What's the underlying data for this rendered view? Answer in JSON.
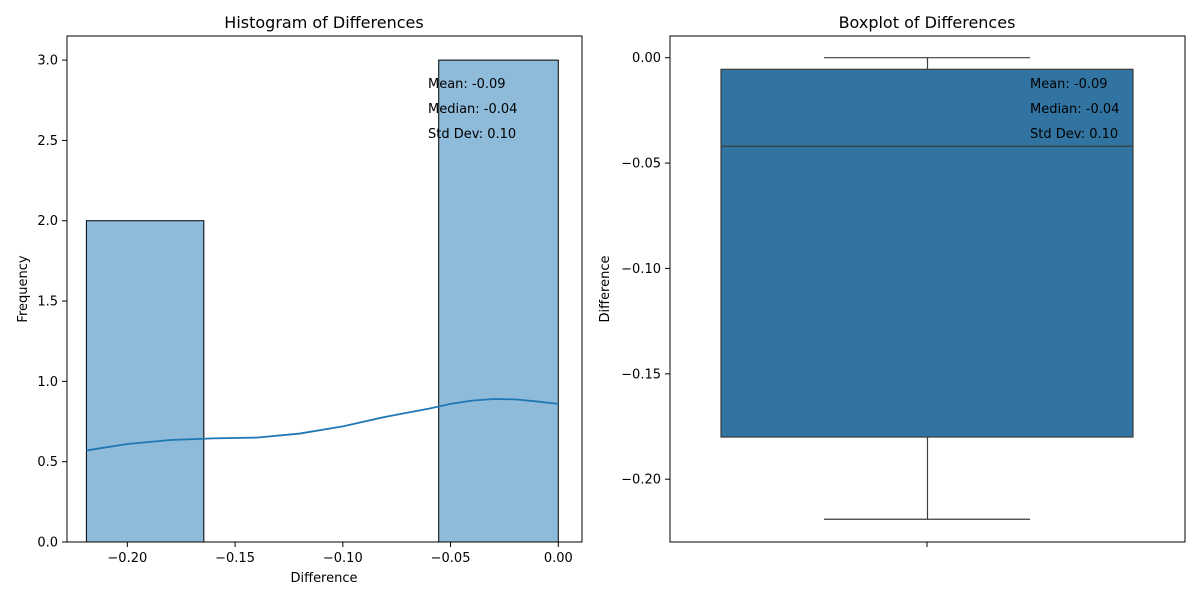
{
  "chart_data": [
    {
      "type": "bar",
      "subtype": "histogram",
      "title": "Histogram of Differences",
      "xlabel": "Difference",
      "ylabel": "Frequency",
      "xlim": [
        -0.228,
        0.011
      ],
      "ylim": [
        0,
        3.15
      ],
      "xticks": [
        "−0.20",
        "−0.15",
        "−0.10",
        "−0.05",
        "0.00"
      ],
      "xtick_values": [
        -0.2,
        -0.15,
        -0.1,
        -0.05,
        0.0
      ],
      "yticks": [
        "0.0",
        "0.5",
        "1.0",
        "1.5",
        "2.0",
        "2.5",
        "3.0"
      ],
      "ytick_values": [
        0,
        0.5,
        1.0,
        1.5,
        2.0,
        2.5,
        3.0
      ],
      "bins": [
        {
          "x0": -0.219,
          "x1": -0.1645,
          "count": 2
        },
        {
          "x0": -0.1645,
          "x1": -0.11,
          "count": 0
        },
        {
          "x0": -0.11,
          "x1": -0.0555,
          "count": 0
        },
        {
          "x0": -0.0555,
          "x1": 0.0,
          "count": 3
        }
      ],
      "kde": {
        "x": [
          -0.219,
          -0.2,
          -0.18,
          -0.16,
          -0.14,
          -0.12,
          -0.1,
          -0.08,
          -0.06,
          -0.05,
          -0.04,
          -0.03,
          -0.02,
          -0.01,
          0.0
        ],
        "y": [
          0.57,
          0.61,
          0.635,
          0.645,
          0.65,
          0.675,
          0.72,
          0.78,
          0.83,
          0.86,
          0.88,
          0.89,
          0.888,
          0.875,
          0.86
        ]
      },
      "annotations": [
        "Mean: -0.09",
        "Median: -0.04",
        "Std Dev: 0.10"
      ],
      "grid": false,
      "colors": {
        "bar": "#8fbbdb",
        "kde": "#1f77b4",
        "edge": "#000000"
      }
    },
    {
      "type": "box",
      "title": "Boxplot of Differences",
      "xlabel": "",
      "ylabel": "Difference",
      "ylim": [
        -0.2298,
        0.0103
      ],
      "yticks": [
        "0.00",
        "−0.05",
        "−0.10",
        "−0.15",
        "−0.20"
      ],
      "ytick_values": [
        0.0,
        -0.05,
        -0.1,
        -0.15,
        -0.2
      ],
      "box": {
        "whisker_low": -0.219,
        "q1": -0.18,
        "median": -0.042,
        "q3": -0.0055,
        "whisker_high": 0.0
      },
      "annotations": [
        "Mean: -0.09",
        "Median: -0.04",
        "Std Dev: 0.10"
      ],
      "grid": false,
      "colors": {
        "box": "#3274a1",
        "line": "#3d3d3d"
      }
    }
  ]
}
